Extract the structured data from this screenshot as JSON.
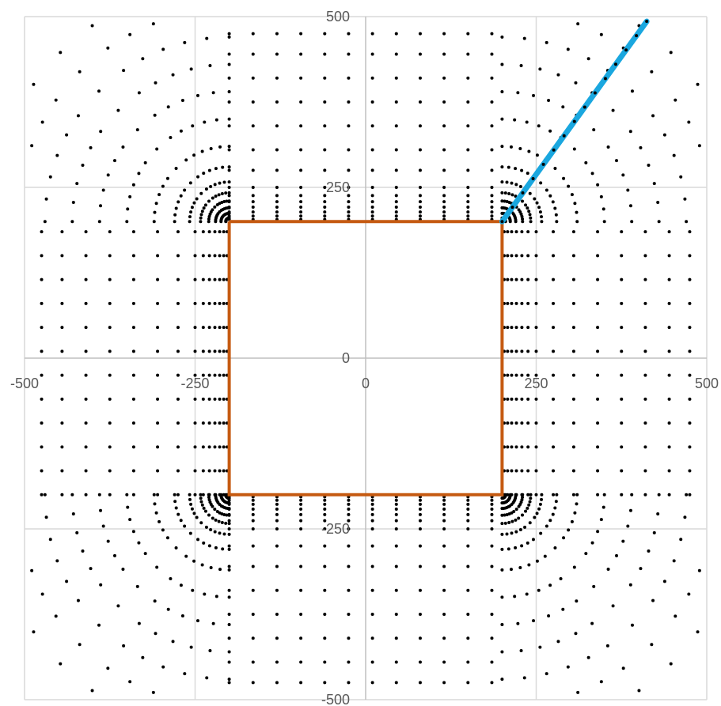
{
  "chart_data": {
    "type": "scatter",
    "title": "",
    "xlabel": "",
    "ylabel": "",
    "xlim": [
      -500,
      500
    ],
    "ylim": [
      -500,
      500
    ],
    "x_ticks": [
      -500,
      -250,
      0,
      250,
      500
    ],
    "y_ticks": [
      -500,
      -250,
      0,
      250,
      500
    ],
    "x_tick_labels": [
      "-500",
      "-250",
      "0",
      "250",
      "500"
    ],
    "y_tick_labels": [
      "-500",
      "-250",
      "0",
      "250",
      "500"
    ],
    "grid": true,
    "legend": "none",
    "colors": {
      "points": "#000000",
      "square": "#c55a11",
      "ray": "#1aa7df",
      "grid": "#d9d9d9",
      "axis": "#bfbfbf",
      "tick_text": "#595959"
    },
    "series": [
      {
        "kind": "scatter",
        "note_values": "grid of sample points around a square of half-width 200; on an outer ring each column/row uses 14 radial offsets from the square edge",
        "square_half_width": 200,
        "edge_positions": [
          -200,
          -165,
          -130,
          -95,
          -60,
          -25,
          10,
          45,
          80,
          115,
          150,
          185
        ],
        "radial_offsets": [
          3,
          8,
          14,
          21,
          29,
          38,
          50,
          75,
          105,
          140,
          175,
          210,
          245,
          275
        ],
        "corner_ray_angles_deg": [
          0,
          7,
          14,
          21,
          28,
          35,
          45,
          55,
          62,
          69,
          76,
          83,
          90
        ],
        "corner_ray_offsets": [
          5,
          12,
          20,
          30,
          42,
          58,
          80,
          110,
          150,
          190,
          230,
          270,
          310,
          350
        ]
      },
      {
        "kind": "line",
        "x": [
          -200,
          200,
          200,
          -200,
          -200
        ],
        "y": [
          200,
          200,
          -200,
          -200,
          200
        ]
      },
      {
        "kind": "line",
        "x": [
          200,
          412
        ],
        "y": [
          200,
          493
        ]
      }
    ]
  }
}
